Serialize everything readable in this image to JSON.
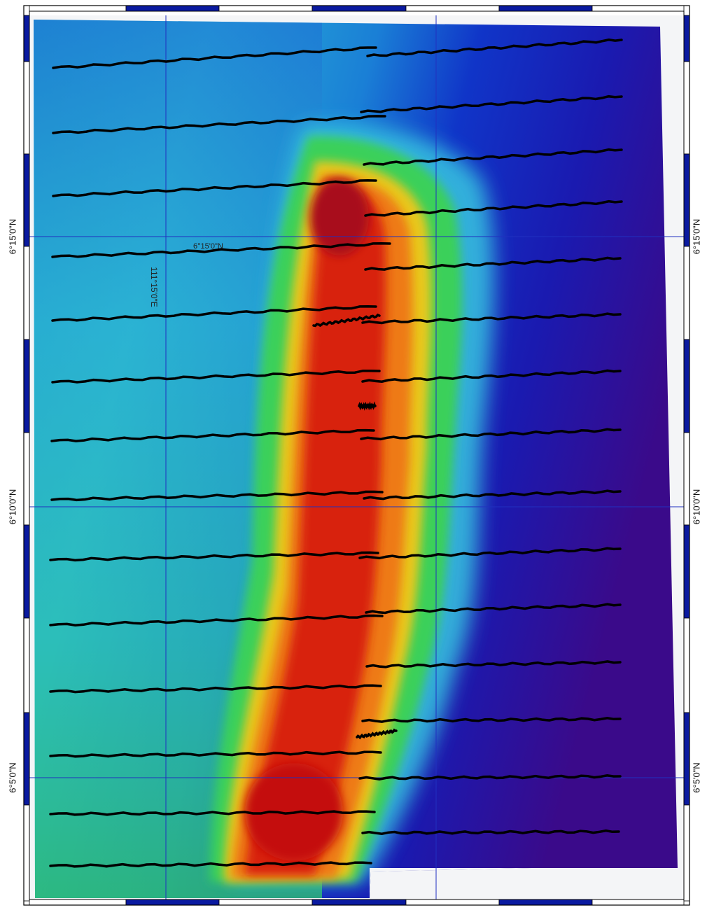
{
  "map": {
    "lat_labels": [
      {
        "text": "6°15'0\"N",
        "side": "both"
      },
      {
        "text": "6°10'0\"N",
        "side": "both"
      },
      {
        "text": "6°5'0\"N",
        "side": "both"
      }
    ],
    "interior_labels": {
      "latitude_label": "6°15'0\"N",
      "longitude_label": "111°15'0\"E"
    },
    "colors": {
      "frame_dark": "#0a1aa0",
      "frame_light": "#ffffff",
      "grid": "#2030c0",
      "tracklines": "#000000",
      "deep": "#3a0a8a",
      "shallow": "#c80a0a"
    },
    "track_line_count": 30
  }
}
